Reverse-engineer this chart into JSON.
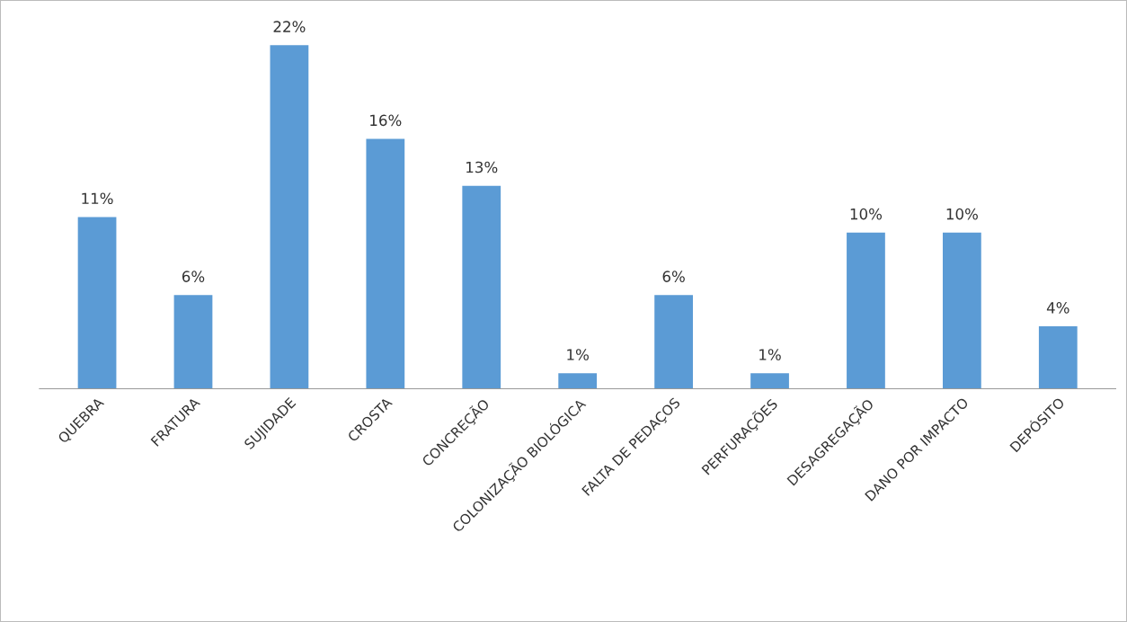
{
  "chart_data": {
    "type": "bar",
    "categories": [
      "QUEBRA",
      "FRATURA",
      "SUJIDADE",
      "CROSTA",
      "CONCREÇÃO",
      "COLONIZAÇÃO BIOLÓGICA",
      "FALTA DE PEDAÇOS",
      "PERFURAÇÕES",
      "DESAGREGAÇÃO",
      "DANO POR IMPACTO",
      "DEPÓSITO"
    ],
    "values": [
      11,
      6,
      22,
      16,
      13,
      1,
      6,
      1,
      10,
      10,
      4
    ],
    "value_labels": [
      "11%",
      "6%",
      "22%",
      "16%",
      "13%",
      "1%",
      "6%",
      "1%",
      "10%",
      "10%",
      "4%"
    ],
    "color": "#5b9bd5",
    "grid": false,
    "legend": false
  }
}
